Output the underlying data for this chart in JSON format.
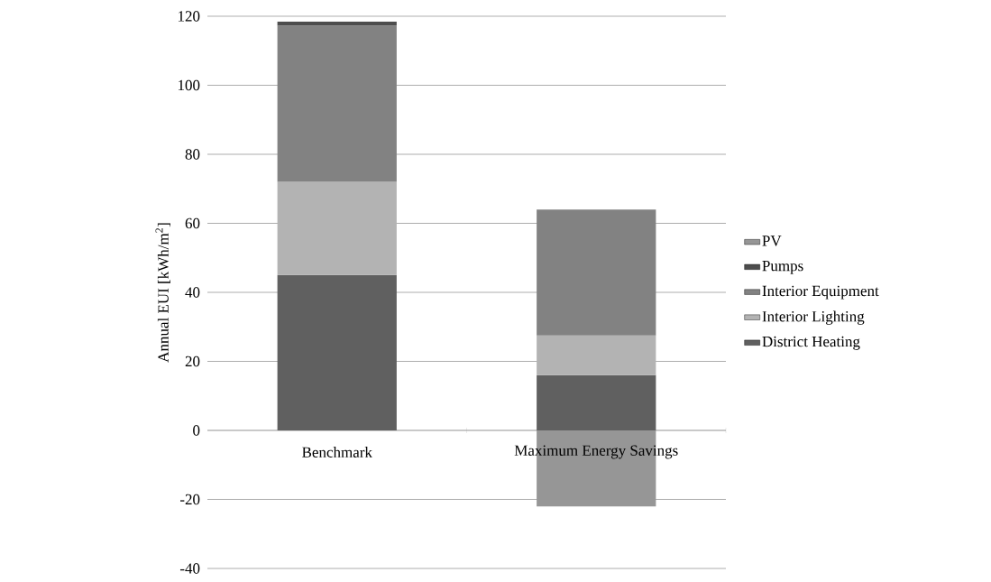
{
  "chart_data": {
    "type": "bar",
    "stacked": true,
    "ylabel": "Annual EUI [kWh/m$^{2}$]",
    "categories": [
      "Benchmark",
      "Maximum Energy Savings"
    ],
    "series": [
      {
        "name": "District Heating",
        "color": "#606060",
        "values": [
          45,
          16
        ]
      },
      {
        "name": "Interior Lighting",
        "color": "#b3b3b3",
        "values": [
          27,
          11.5
        ]
      },
      {
        "name": "Interior Equipment",
        "color": "#828282",
        "values": [
          45.3,
          36.5
        ]
      },
      {
        "name": "Pumps",
        "color": "#4d4d4d",
        "values": [
          1.1,
          0
        ]
      },
      {
        "name": "PV",
        "color": "#969696",
        "values": [
          0,
          -22
        ]
      }
    ],
    "ylim": [
      -40,
      120
    ],
    "yticks": [
      -40,
      -20,
      0,
      20,
      40,
      60,
      80,
      100,
      120
    ],
    "grid": "y",
    "legend": "right"
  }
}
